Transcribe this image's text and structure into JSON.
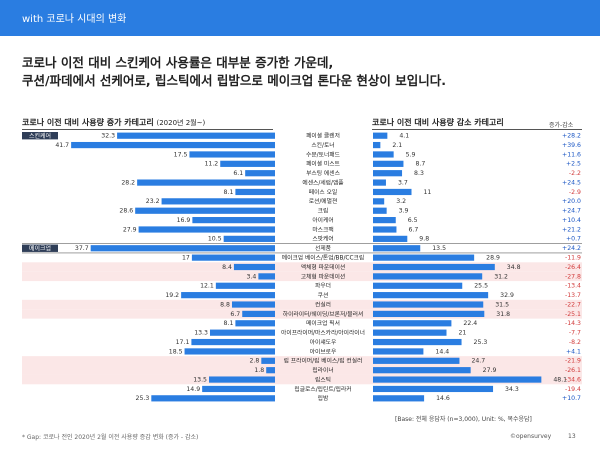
{
  "header": {
    "section": "with 코로나 시대의 변화"
  },
  "headline": {
    "line1": "코로나 이전 대비 스킨케어 사용률은 대부분 증가한 가운데,",
    "line2": "쿠션/파데에서 선케어로, 립스틱에서 립밤으로 메이크업 톤다운 현상이 보입니다."
  },
  "left_title": {
    "text": "코로나 이전 대비 사용량 증가 카테고리",
    "sub": "(2020년 2월~)"
  },
  "right_title": "코로나 이전 대비 사용량 감소 카테고리",
  "inc_col_label": "증가-감소",
  "groups": {
    "skin": "스킨케어",
    "makeup": "메이크업"
  },
  "base_note": "[Base: 전체 응답자 (n=3,000), Unit: %, 복수응답]",
  "footnote": "* Gap: 코로나 전인 2020년 2월 이전 사용량 증감 변화 (증가 - 감소)",
  "logo": "©opensurvey",
  "page_number": "13",
  "colors": {
    "accent": "#2a7de1",
    "bar": "#2a7de1",
    "highlight_row": "#fbe7e7",
    "positive": "#1a56c4",
    "negative": "#d23b3b"
  },
  "chart_data": {
    "type": "bar",
    "categories": [
      "페이셜 클렌저",
      "스킨/토너",
      "수분/토너패드",
      "페이셜 미스트",
      "부스팅 에센스",
      "에센스/세럼/앰플",
      "페이스 오일",
      "로션/에멀젼",
      "크림",
      "아이케어",
      "마스크팩",
      "스팟케어",
      "선제품",
      "메이크업 베이스/톤업/BB/CC크림",
      "액체형 파운데이션",
      "고체형 파운데이션",
      "파우더",
      "쿠션",
      "컨실러",
      "하이라이터/쉐이딩/브론저/블러셔",
      "메이크업 픽서",
      "아이프라이머/마스카라/아이라이너",
      "아이섀도우",
      "아이브로우",
      "립 프라이머/립 베이스/립 컨실러",
      "립라이너",
      "립스틱",
      "립글로스/립틴트/립라커",
      "립밤"
    ],
    "series": [
      {
        "name": "코로나 이전 대비 사용량 증가 카테고리",
        "values": [
          32.3,
          41.7,
          17.5,
          11.2,
          6.1,
          28.2,
          8.1,
          23.2,
          28.6,
          16.9,
          27.9,
          10.5,
          37.7,
          17.0,
          8.4,
          3.4,
          12.1,
          19.2,
          8.8,
          6.7,
          8.1,
          13.3,
          17.1,
          18.5,
          2.8,
          1.8,
          13.5,
          14.9,
          25.3
        ]
      },
      {
        "name": "코로나 이전 대비 사용량 감소 카테고리",
        "values": [
          4.1,
          2.1,
          5.9,
          8.7,
          8.3,
          3.7,
          11.0,
          3.2,
          3.9,
          6.5,
          6.7,
          9.8,
          13.5,
          28.9,
          34.8,
          31.2,
          25.5,
          32.9,
          31.5,
          31.8,
          22.4,
          21.0,
          25.3,
          14.4,
          24.7,
          27.9,
          48.1,
          34.3,
          14.6
        ]
      }
    ],
    "gap_labels": [
      "+28.2",
      "+39.6",
      "+11.6",
      "+2.5",
      "-2.2",
      "+24.5",
      "-2.9",
      "+20.0",
      "+24.7",
      "+10.4",
      "+21.2",
      "+0.7",
      "+24.2",
      "-11.9",
      "-26.4",
      "-27.8",
      "-13.4",
      "-13.7",
      "-22.7",
      "-25.1",
      "-14.3",
      "-7.7",
      "-8.2",
      "+4.1",
      "-21.9",
      "-26.1",
      "-34.6",
      "-19.4",
      "+10.7"
    ],
    "highlighted_rows": [
      14,
      15,
      18,
      19,
      24,
      25,
      26
    ],
    "x_max_left": 45,
    "x_max_right": 50
  }
}
